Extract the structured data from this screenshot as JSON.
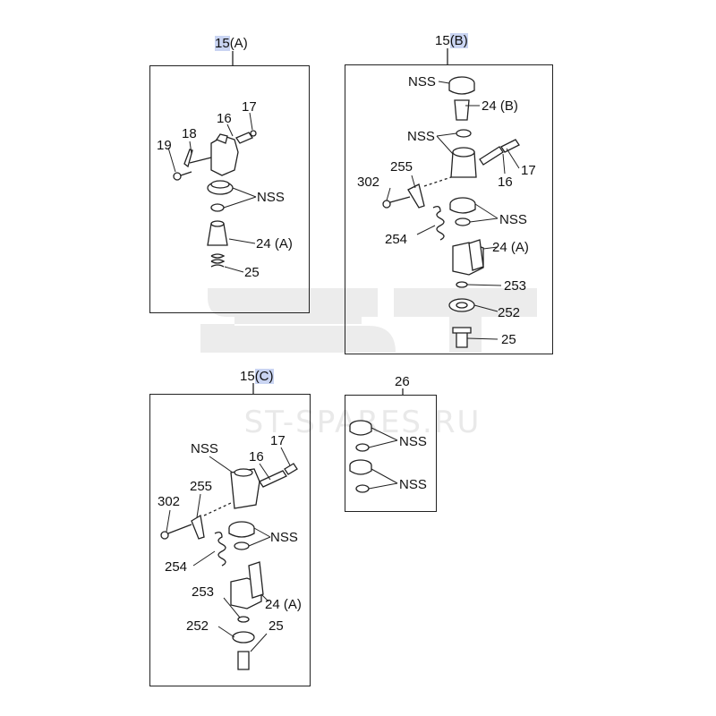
{
  "watermark": {
    "text": "ST-SPARES.RU",
    "color": "#e6e6e6"
  },
  "highlight_color": "#c9d4f2",
  "panels": {
    "a": {
      "title_num": "15",
      "title_suffix": "(A)",
      "labels": {
        "p17": "17",
        "p16": "16",
        "p18": "18",
        "p19": "19",
        "nss": "NSS",
        "p24a": "24 (A)",
        "p25": "25"
      }
    },
    "b": {
      "title_num": "15",
      "title_suffix": "(B)",
      "labels": {
        "nss1": "NSS",
        "p24b": "24 (B)",
        "nss2": "NSS",
        "p17": "17",
        "p16": "16",
        "p255": "255",
        "p302": "302",
        "nss3": "NSS",
        "p254": "254",
        "p24a": "24 (A)",
        "p253": "253",
        "p252": "252",
        "p25": "25"
      }
    },
    "c": {
      "title_num": "15",
      "title_suffix": "(C)",
      "labels": {
        "nss1": "NSS",
        "p17": "17",
        "p16": "16",
        "p255": "255",
        "p302": "302",
        "nss2": "NSS",
        "p254": "254",
        "p253": "253",
        "p24a": "24 (A)",
        "p252": "252",
        "p25": "25"
      }
    },
    "d": {
      "title": "26",
      "labels": {
        "nss1": "NSS",
        "nss2": "NSS"
      }
    }
  }
}
